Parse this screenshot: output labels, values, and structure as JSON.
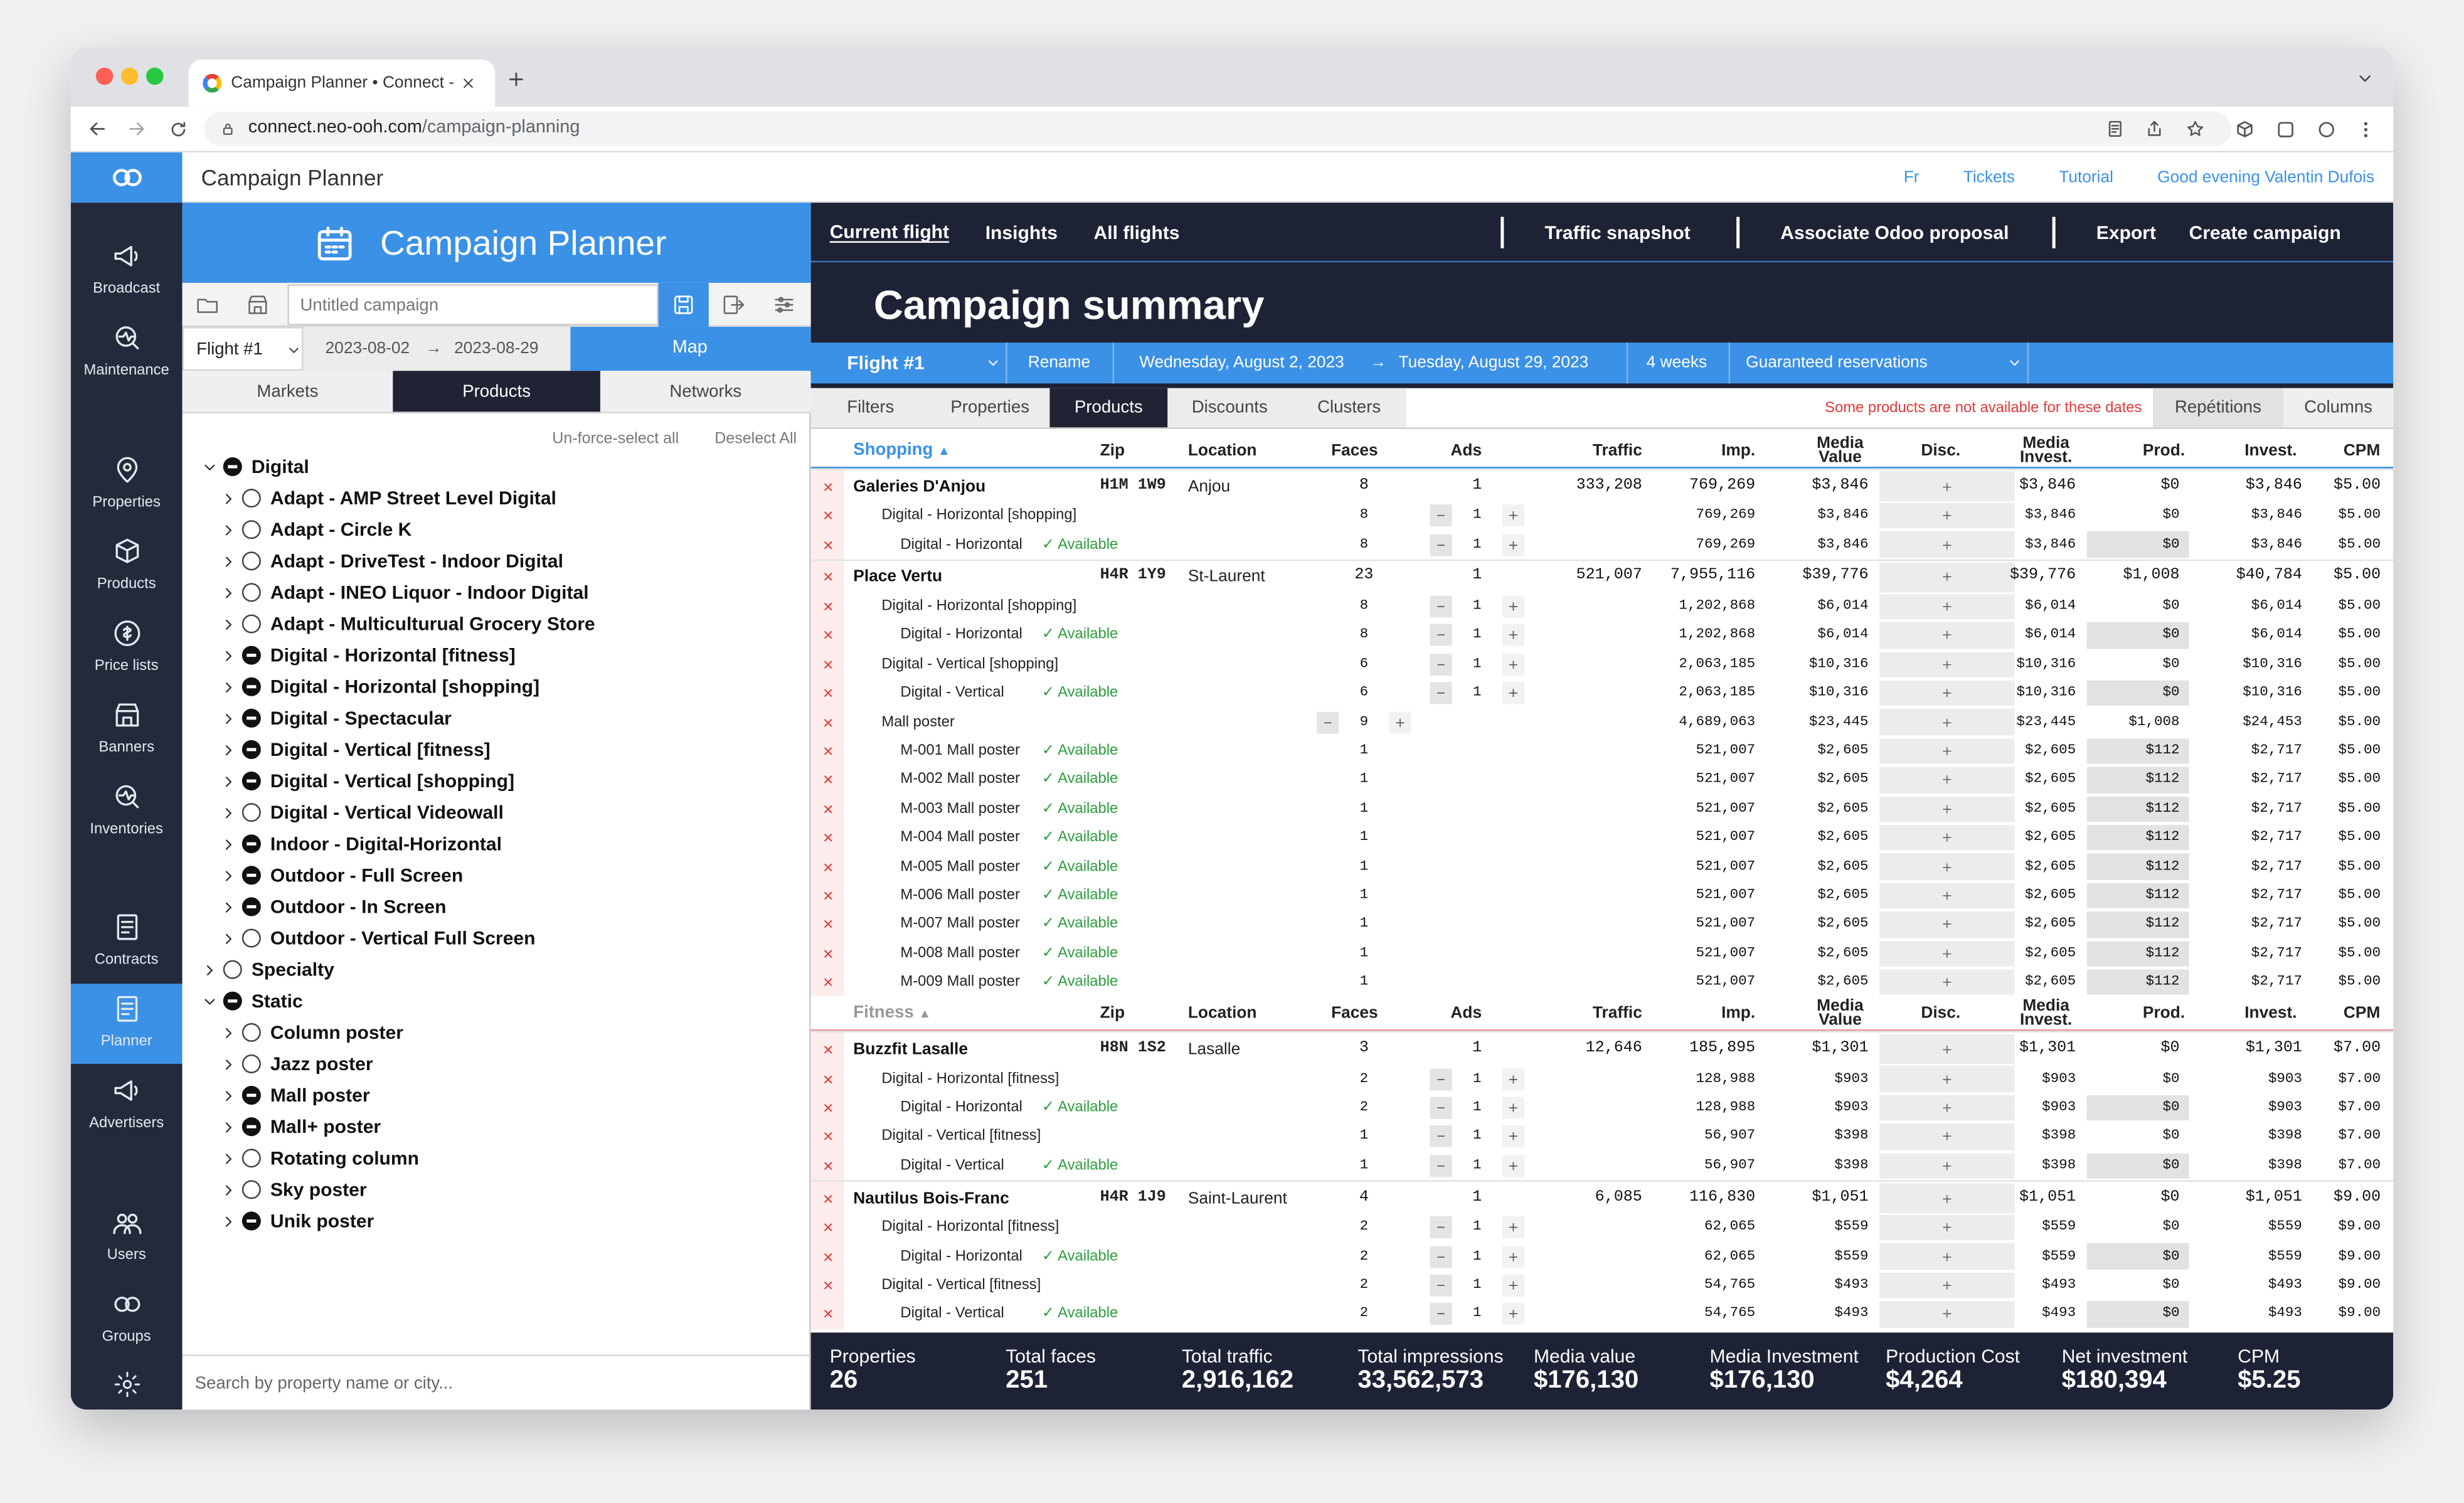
{
  "browser": {
    "tab_title": "Campaign Planner • Connect -",
    "url_host": "connect.neo-ooh.com",
    "url_path": "/campaign-planning"
  },
  "topbar": {
    "app_name": "Campaign Planner",
    "links": [
      "Fr",
      "Tickets",
      "Tutorial",
      "Good evening Valentin Dufois"
    ]
  },
  "sidebar": {
    "groups": [
      [
        "Broadcast",
        "Maintenance"
      ],
      [
        "Properties",
        "Products",
        "Price lists",
        "Banners",
        "Inventories"
      ],
      [
        "Contracts",
        "Planner",
        "Advertisers"
      ],
      [
        "Users",
        "Groups"
      ]
    ],
    "active": [
      2,
      1
    ]
  },
  "left_panel": {
    "title": "Campaign Planner",
    "campaign_name": "Untitled campaign",
    "flight": "Flight #1",
    "start": "2023-08-02",
    "arrow": "→",
    "end": "2023-08-29",
    "map_button": "Map",
    "tabs": [
      "Markets",
      "Products",
      "Networks"
    ],
    "active_tab": 1,
    "actions": [
      "Un-force-select all",
      "Deselect All"
    ],
    "tree": [
      {
        "label": "Digital",
        "selection": "partial",
        "children": [
          {
            "label": "Adapt - AMP Street Level Digital",
            "selection": "none"
          },
          {
            "label": "Adapt - Circle K",
            "selection": "none"
          },
          {
            "label": "Adapt - DriveTest - Indoor Digital",
            "selection": "none"
          },
          {
            "label": "Adapt - INEO Liquor - Indoor Digital",
            "selection": "none"
          },
          {
            "label": "Adapt - Multiculturual Grocery Store",
            "selection": "none"
          },
          {
            "label": "Digital - Horizontal [fitness]",
            "selection": "partial"
          },
          {
            "label": "Digital - Horizontal [shopping]",
            "selection": "partial"
          },
          {
            "label": "Digital - Spectacular",
            "selection": "partial"
          },
          {
            "label": "Digital - Vertical [fitness]",
            "selection": "partial"
          },
          {
            "label": "Digital - Vertical [shopping]",
            "selection": "partial"
          },
          {
            "label": "Digital - Vertical Videowall",
            "selection": "none"
          },
          {
            "label": "Indoor - Digital-Horizontal",
            "selection": "partial"
          },
          {
            "label": "Outdoor - Full Screen",
            "selection": "partial"
          },
          {
            "label": "Outdoor - In Screen",
            "selection": "partial"
          },
          {
            "label": "Outdoor - Vertical Full Screen",
            "selection": "none"
          }
        ]
      },
      {
        "label": "Specialty",
        "selection": "none"
      },
      {
        "label": "Static",
        "selection": "partial",
        "children": [
          {
            "label": "Column poster",
            "selection": "none"
          },
          {
            "label": "Jazz poster",
            "selection": "none"
          },
          {
            "label": "Mall poster",
            "selection": "partial"
          },
          {
            "label": "Mall+ poster",
            "selection": "partial"
          },
          {
            "label": "Rotating column",
            "selection": "none"
          },
          {
            "label": "Sky poster",
            "selection": "none"
          },
          {
            "label": "Unik poster",
            "selection": "partial"
          }
        ]
      }
    ],
    "search_placeholder": "Search by property name or city..."
  },
  "right_panel": {
    "nav_left": [
      "Current flight",
      "Insights",
      "All flights"
    ],
    "active_nav": 0,
    "nav_right": [
      "Traffic snapshot",
      "Associate Odoo proposal",
      "Export",
      "Create campaign"
    ],
    "title": "Campaign summary",
    "flight_bar": {
      "flight": "Flight #1",
      "rename": "Rename",
      "start": "Wednesday, August 2, 2023",
      "arrow": "→",
      "end": "Tuesday, August 29, 2023",
      "duration": "4 weeks",
      "mode": "Guaranteed reservations"
    },
    "tabs": [
      "Filters",
      "Properties",
      "Products",
      "Discounts",
      "Clusters"
    ],
    "active_tab": 2,
    "warning": "Some products are not available for these dates",
    "tabs_right": [
      "Repétitions",
      "Columns"
    ]
  },
  "table": {
    "columns": [
      "Zip",
      "Location",
      "Faces",
      "Ads",
      "Traffic",
      "Imp.",
      "Media Value",
      "Disc.",
      "Media Invest.",
      "Prod.",
      "Invest.",
      "CPM"
    ],
    "sections": [
      {
        "name": "Shopping",
        "sort": "▲",
        "properties": [
          {
            "name": "Galeries D'Anjou",
            "zip": "H1M 1W9",
            "location": "Anjou",
            "cells": [
              "8",
              "1",
              "333,208",
              "769,269",
              "$3,846",
              "$3,846",
              "$0",
              "$3,846",
              "$5.00"
            ],
            "products": [
              {
                "name": "Digital - Horizontal [shopping]",
                "cells": [
                  "8",
                  "1",
                  null,
                  "769,269",
                  "$3,846",
                  "$3,846",
                  "$0",
                  "$3,846",
                  "$5.00"
                ],
                "items": [
                  {
                    "name": "Digital - Horizontal",
                    "status": "✓ Available",
                    "cells": [
                      "8",
                      "1",
                      null,
                      "769,269",
                      "$3,846",
                      "$3,846",
                      "$0",
                      "$3,846",
                      "$5.00"
                    ]
                  }
                ]
              }
            ]
          },
          {
            "name": "Place Vertu",
            "zip": "H4R 1Y9",
            "location": "St-Laurent",
            "cells": [
              "23",
              "1",
              "521,007",
              "7,955,116",
              "$39,776",
              "$39,776",
              "$1,008",
              "$40,784",
              "$5.00"
            ],
            "products": [
              {
                "name": "Digital - Horizontal [shopping]",
                "cells": [
                  "8",
                  "1",
                  null,
                  "1,202,868",
                  "$6,014",
                  "$6,014",
                  "$0",
                  "$6,014",
                  "$5.00"
                ],
                "items": [
                  {
                    "name": "Digital - Horizontal",
                    "status": "✓ Available",
                    "cells": [
                      "8",
                      "1",
                      null,
                      "1,202,868",
                      "$6,014",
                      "$6,014",
                      "$0",
                      "$6,014",
                      "$5.00"
                    ]
                  }
                ]
              },
              {
                "name": "Digital - Vertical [shopping]",
                "cells": [
                  "6",
                  "1",
                  null,
                  "2,063,185",
                  "$10,316",
                  "$10,316",
                  "$0",
                  "$10,316",
                  "$5.00"
                ],
                "items": [
                  {
                    "name": "Digital - Vertical",
                    "status": "✓ Available",
                    "cells": [
                      "6",
                      "1",
                      null,
                      "2,063,185",
                      "$10,316",
                      "$10,316",
                      "$0",
                      "$10,316",
                      "$5.00"
                    ]
                  }
                ]
              },
              {
                "name": "Mall poster",
                "cells": [
                  "9",
                  null,
                  null,
                  "4,689,063",
                  "$23,445",
                  "$23,445",
                  "$1,008",
                  "$24,453",
                  "$5.00"
                ],
                "items": [
                  {
                    "name": "M-001 Mall poster",
                    "status": "✓ Available",
                    "cells": [
                      "1",
                      null,
                      null,
                      "521,007",
                      "$2,605",
                      "$2,605",
                      "$112",
                      "$2,717",
                      "$5.00"
                    ]
                  },
                  {
                    "name": "M-002 Mall poster",
                    "status": "✓ Available",
                    "cells": [
                      "1",
                      null,
                      null,
                      "521,007",
                      "$2,605",
                      "$2,605",
                      "$112",
                      "$2,717",
                      "$5.00"
                    ]
                  },
                  {
                    "name": "M-003 Mall poster",
                    "status": "✓ Available",
                    "cells": [
                      "1",
                      null,
                      null,
                      "521,007",
                      "$2,605",
                      "$2,605",
                      "$112",
                      "$2,717",
                      "$5.00"
                    ]
                  },
                  {
                    "name": "M-004 Mall poster",
                    "status": "✓ Available",
                    "cells": [
                      "1",
                      null,
                      null,
                      "521,007",
                      "$2,605",
                      "$2,605",
                      "$112",
                      "$2,717",
                      "$5.00"
                    ]
                  },
                  {
                    "name": "M-005 Mall poster",
                    "status": "✓ Available",
                    "cells": [
                      "1",
                      null,
                      null,
                      "521,007",
                      "$2,605",
                      "$2,605",
                      "$112",
                      "$2,717",
                      "$5.00"
                    ]
                  },
                  {
                    "name": "M-006 Mall poster",
                    "status": "✓ Available",
                    "cells": [
                      "1",
                      null,
                      null,
                      "521,007",
                      "$2,605",
                      "$2,605",
                      "$112",
                      "$2,717",
                      "$5.00"
                    ]
                  },
                  {
                    "name": "M-007 Mall poster",
                    "status": "✓ Available",
                    "cells": [
                      "1",
                      null,
                      null,
                      "521,007",
                      "$2,605",
                      "$2,605",
                      "$112",
                      "$2,717",
                      "$5.00"
                    ]
                  },
                  {
                    "name": "M-008 Mall poster",
                    "status": "✓ Available",
                    "cells": [
                      "1",
                      null,
                      null,
                      "521,007",
                      "$2,605",
                      "$2,605",
                      "$112",
                      "$2,717",
                      "$5.00"
                    ]
                  },
                  {
                    "name": "M-009 Mall poster",
                    "status": "✓ Available",
                    "cells": [
                      "1",
                      null,
                      null,
                      "521,007",
                      "$2,605",
                      "$2,605",
                      "$112",
                      "$2,717",
                      "$5.00"
                    ]
                  }
                ]
              }
            ]
          }
        ]
      },
      {
        "name": "Fitness",
        "sort": "▲",
        "properties": [
          {
            "name": "Buzzfit Lasalle",
            "zip": "H8N 1S2",
            "location": "Lasalle",
            "cells": [
              "3",
              "1",
              "12,646",
              "185,895",
              "$1,301",
              "$1,301",
              "$0",
              "$1,301",
              "$7.00"
            ],
            "products": [
              {
                "name": "Digital - Horizontal [fitness]",
                "cells": [
                  "2",
                  "1",
                  null,
                  "128,988",
                  "$903",
                  "$903",
                  "$0",
                  "$903",
                  "$7.00"
                ],
                "items": [
                  {
                    "name": "Digital - Horizontal",
                    "status": "✓ Available",
                    "cells": [
                      "2",
                      "1",
                      null,
                      "128,988",
                      "$903",
                      "$903",
                      "$0",
                      "$903",
                      "$7.00"
                    ]
                  }
                ]
              },
              {
                "name": "Digital - Vertical [fitness]",
                "cells": [
                  "1",
                  "1",
                  null,
                  "56,907",
                  "$398",
                  "$398",
                  "$0",
                  "$398",
                  "$7.00"
                ],
                "items": [
                  {
                    "name": "Digital - Vertical",
                    "status": "✓ Available",
                    "cells": [
                      "1",
                      "1",
                      null,
                      "56,907",
                      "$398",
                      "$398",
                      "$0",
                      "$398",
                      "$7.00"
                    ]
                  }
                ]
              }
            ]
          },
          {
            "name": "Nautilus Bois-Franc",
            "zip": "H4R 1J9",
            "location": "Saint-Laurent",
            "cells": [
              "4",
              "1",
              "6,085",
              "116,830",
              "$1,051",
              "$1,051",
              "$0",
              "$1,051",
              "$9.00"
            ],
            "products": [
              {
                "name": "Digital - Horizontal [fitness]",
                "cells": [
                  "2",
                  "1",
                  null,
                  "62,065",
                  "$559",
                  "$559",
                  "$0",
                  "$559",
                  "$9.00"
                ],
                "items": [
                  {
                    "name": "Digital - Horizontal",
                    "status": "✓ Available",
                    "cells": [
                      "2",
                      "1",
                      null,
                      "62,065",
                      "$559",
                      "$559",
                      "$0",
                      "$559",
                      "$9.00"
                    ]
                  }
                ]
              },
              {
                "name": "Digital - Vertical [fitness]",
                "cells": [
                  "2",
                  "1",
                  null,
                  "54,765",
                  "$493",
                  "$493",
                  "$0",
                  "$493",
                  "$9.00"
                ],
                "items": [
                  {
                    "name": "Digital - Vertical",
                    "status": "✓ Available",
                    "cells": [
                      "2",
                      "1",
                      null,
                      "54,765",
                      "$493",
                      "$493",
                      "$0",
                      "$493",
                      "$9.00"
                    ]
                  }
                ]
              }
            ]
          }
        ]
      }
    ]
  },
  "totals": [
    {
      "label": "Properties",
      "value": "26"
    },
    {
      "label": "Total faces",
      "value": "251"
    },
    {
      "label": "Total traffic",
      "value": "2,916,162"
    },
    {
      "label": "Total impressions",
      "value": "33,562,573"
    },
    {
      "label": "Media value",
      "value": "$176,130"
    },
    {
      "label": "Media Investment",
      "value": "$176,130"
    },
    {
      "label": "Production Cost",
      "value": "$4,264"
    },
    {
      "label": "Net investment",
      "value": "$180,394"
    },
    {
      "label": "CPM",
      "value": "$5.25"
    }
  ]
}
